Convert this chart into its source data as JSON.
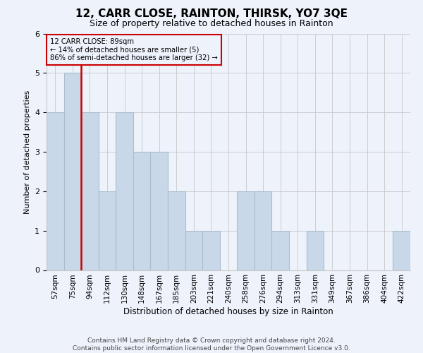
{
  "title": "12, CARR CLOSE, RAINTON, THIRSK, YO7 3QE",
  "subtitle": "Size of property relative to detached houses in Rainton",
  "xlabel": "Distribution of detached houses by size in Rainton",
  "ylabel": "Number of detached properties",
  "footer1": "Contains HM Land Registry data © Crown copyright and database right 2024.",
  "footer2": "Contains public sector information licensed under the Open Government Licence v3.0.",
  "annotation_line1": "12 CARR CLOSE: 89sqm",
  "annotation_line2": "← 14% of detached houses are smaller (5)",
  "annotation_line3": "86% of semi-detached houses are larger (32) →",
  "categories": [
    "57sqm",
    "75sqm",
    "94sqm",
    "112sqm",
    "130sqm",
    "148sqm",
    "167sqm",
    "185sqm",
    "203sqm",
    "221sqm",
    "240sqm",
    "258sqm",
    "276sqm",
    "294sqm",
    "313sqm",
    "331sqm",
    "349sqm",
    "367sqm",
    "386sqm",
    "404sqm",
    "422sqm"
  ],
  "values": [
    4,
    5,
    4,
    2,
    4,
    3,
    3,
    2,
    1,
    1,
    0,
    2,
    2,
    1,
    0,
    1,
    0,
    0,
    0,
    0,
    1
  ],
  "bar_color": "#c8d8e8",
  "bar_edgecolor": "#a8bece",
  "red_line_x": 2.0,
  "marker_color": "#cc0000",
  "background_color": "#eef2fb",
  "grid_color": "#c8c8c8",
  "ylim": [
    0,
    6
  ],
  "yticks": [
    0,
    1,
    2,
    3,
    4,
    5,
    6
  ],
  "title_fontsize": 11,
  "subtitle_fontsize": 9,
  "axis_label_fontsize": 8,
  "tick_fontsize": 7.5,
  "footer_fontsize": 6.5
}
